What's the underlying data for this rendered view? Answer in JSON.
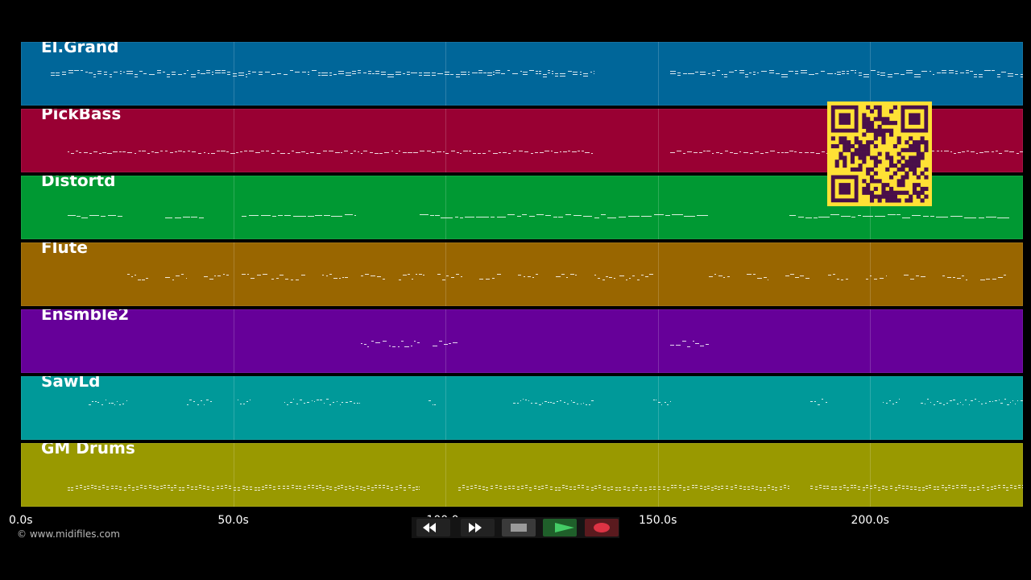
{
  "timeline": {
    "max_seconds": 236,
    "tick_labels": [
      {
        "value": 0,
        "label": "0.0s"
      },
      {
        "value": 50,
        "label": "50.0s"
      },
      {
        "value": 100,
        "label": "100.0s"
      },
      {
        "value": 150,
        "label": "150.0s"
      },
      {
        "value": 200,
        "label": "200.0s"
      }
    ]
  },
  "tracks": [
    {
      "name": "El.Grand",
      "color": "#006699",
      "pattern": "dense",
      "segments": [
        [
          7,
          135
        ],
        [
          153,
          236
        ]
      ]
    },
    {
      "name": "PickBass",
      "color": "#990033",
      "pattern": "wavy",
      "segments": [
        [
          11,
          135
        ],
        [
          153,
          236
        ]
      ]
    },
    {
      "name": "Distortd",
      "color": "#009933",
      "pattern": "bars",
      "segments": [
        [
          11,
          24
        ],
        [
          34,
          43
        ],
        [
          52,
          79
        ],
        [
          94,
          162
        ],
        [
          181,
          233
        ]
      ]
    },
    {
      "name": "Flute",
      "color": "#996600",
      "pattern": "sparse",
      "segments": [
        [
          25,
          30
        ],
        [
          34,
          39
        ],
        [
          43,
          49
        ],
        [
          52,
          58
        ],
        [
          59,
          67
        ],
        [
          71,
          77
        ],
        [
          80,
          86
        ],
        [
          89,
          95
        ],
        [
          98,
          104
        ],
        [
          108,
          113
        ],
        [
          117,
          122
        ],
        [
          126,
          131
        ],
        [
          135,
          140
        ],
        [
          141,
          149
        ],
        [
          162,
          167
        ],
        [
          171,
          176
        ],
        [
          180,
          186
        ],
        [
          190,
          195
        ],
        [
          199,
          204
        ],
        [
          208,
          213
        ],
        [
          217,
          223
        ],
        [
          226,
          232
        ]
      ]
    },
    {
      "name": "Ensmble2",
      "color": "#660099",
      "pattern": "sparse",
      "segments": [
        [
          80,
          94
        ],
        [
          97,
          103
        ],
        [
          153,
          162
        ]
      ]
    },
    {
      "name": "SawLd",
      "color": "#009999",
      "pattern": "dots",
      "segments": [
        [
          16,
          25
        ],
        [
          39,
          45
        ],
        [
          51,
          54
        ],
        [
          62,
          80
        ],
        [
          96,
          98
        ],
        [
          116,
          135
        ],
        [
          149,
          153
        ],
        [
          186,
          190
        ],
        [
          203,
          207
        ],
        [
          212,
          236
        ]
      ]
    },
    {
      "name": "GM Drums",
      "color": "#999900",
      "pattern": "drums",
      "segments": [
        [
          11,
          94
        ],
        [
          103,
          181
        ],
        [
          186,
          236
        ]
      ]
    }
  ],
  "transport": {
    "buttons": [
      {
        "name": "rewind",
        "icon": "rewind-icon",
        "color": "#ffffff",
        "bg": "#222222"
      },
      {
        "name": "fast-forward",
        "icon": "fast-forward-icon",
        "color": "#ffffff",
        "bg": "#222222"
      },
      {
        "name": "stop",
        "icon": "stop-icon",
        "color": "#9a9a9a",
        "bg": "#3a3a3a"
      },
      {
        "name": "play",
        "icon": "play-icon",
        "color": "#44cc66",
        "bg": "#1f5f2a"
      },
      {
        "name": "record",
        "icon": "record-icon",
        "color": "#dd3344",
        "bg": "#5a1a1e"
      }
    ]
  },
  "qr_code": {
    "icon": "qr-code-icon",
    "color": "#ffe135",
    "module_color": "#4a0f4a"
  },
  "footer": {
    "copyright": "© www.midifiles.com"
  }
}
